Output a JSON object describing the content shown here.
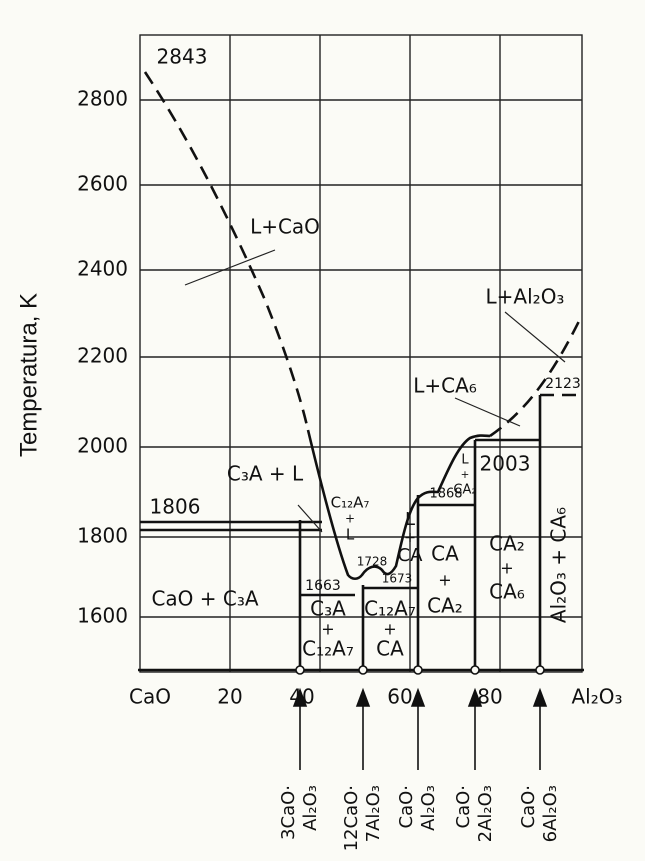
{
  "y_axis": {
    "title": "Temperatura, K",
    "ticks": [
      "2800",
      "2600",
      "2400",
      "2200",
      "2000",
      "1800",
      "1600"
    ]
  },
  "x_axis": {
    "ticks": [
      "CaO",
      "20",
      "40",
      "60",
      "80",
      "Al₂O₃"
    ]
  },
  "temperatures": [
    "2843",
    "1806",
    "1663",
    "1728",
    "1673",
    "1868",
    "2003",
    "2123"
  ],
  "regions": [
    [
      "L+CaO"
    ],
    [
      "C₃A + L"
    ],
    [
      "C₁₂A₇",
      "+",
      "L"
    ],
    [
      "CaO + C₃A"
    ],
    [
      "C₃A",
      "+",
      "C₁₂A₇"
    ],
    [
      "C₁₂A₇",
      "+",
      "CA"
    ],
    [
      "L",
      "+",
      "CA"
    ],
    [
      "CA",
      "+",
      "CA₂"
    ],
    [
      "L",
      "+",
      "CA₂"
    ],
    [
      "CA₂",
      "+",
      "CA₆"
    ],
    [
      "Al₂O₃ + CA₆"
    ],
    [
      "L+CA₆"
    ],
    [
      "L+Al₂O₃"
    ]
  ],
  "compounds": [
    [
      "3CaO·",
      "Al₂O₃"
    ],
    [
      "12CaO·",
      "7Al₂O₃"
    ],
    [
      "CaO·",
      "Al₂O₃"
    ],
    [
      "CaO·",
      "2Al₂O₃"
    ],
    [
      "CaO·",
      "6Al₂O₃"
    ]
  ]
}
